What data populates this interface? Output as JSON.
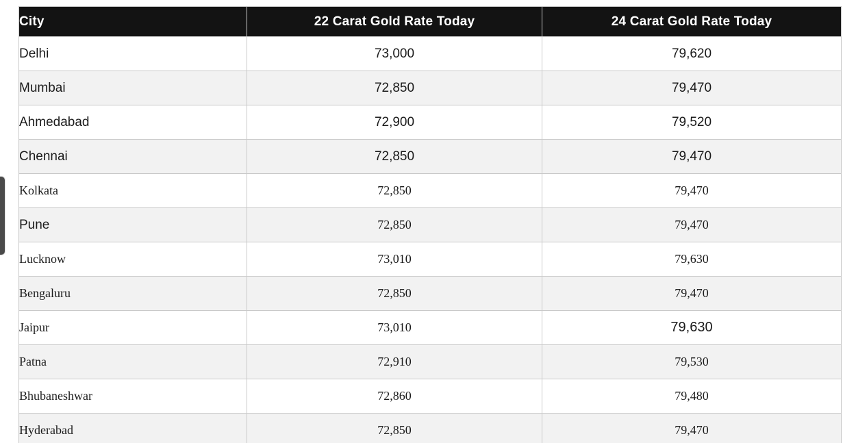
{
  "table": {
    "columns": [
      {
        "label": "City"
      },
      {
        "label": "22 Carat Gold Rate Today"
      },
      {
        "label": "24 Carat Gold Rate Today"
      }
    ],
    "rows": [
      {
        "city": "Delhi",
        "k22": "73,000",
        "k24": "79,620"
      },
      {
        "city": "Mumbai",
        "k22": "72,850",
        "k24": "79,470"
      },
      {
        "city": "Ahmedabad",
        "k22": "72,900",
        "k24": "79,520"
      },
      {
        "city": "Chennai",
        "k22": "72,850",
        "k24": "79,470"
      },
      {
        "city": "Kolkata",
        "k22": "72,850",
        "k24": "79,470"
      },
      {
        "city": "Pune",
        "k22": "72,850",
        "k24": "79,470"
      },
      {
        "city": "Lucknow",
        "k22": "73,010",
        "k24": "79,630"
      },
      {
        "city": "Bengaluru",
        "k22": "72,850",
        "k24": "79,470"
      },
      {
        "city": "Jaipur",
        "k22": "73,010",
        "k24": "79,630"
      },
      {
        "city": "Patna",
        "k22": "72,910",
        "k24": "79,530"
      },
      {
        "city": "Bhubaneshwar",
        "k22": "72,860",
        "k24": "79,480"
      },
      {
        "city": "Hyderabad",
        "k22": "72,850",
        "k24": "79,470"
      }
    ]
  },
  "colors": {
    "header_bg": "#131313",
    "header_text": "#ffffff",
    "row_alt_bg": "#f2f2f2",
    "border": "#c9c9c9",
    "body_text": "#1b1b1b",
    "scroll_thumb": "#4a4a4a"
  }
}
